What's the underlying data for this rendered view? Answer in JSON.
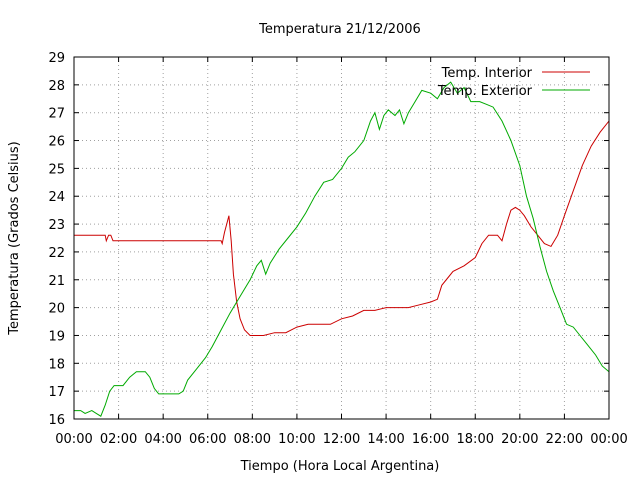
{
  "chart_data": {
    "type": "line",
    "title": "Temperatura 21/12/2006",
    "xlabel": "Tiempo (Hora Local Argentina)",
    "ylabel": "Temperatura (Grados Celsius)",
    "xlim": [
      0,
      24
    ],
    "ylim": [
      16,
      29
    ],
    "x_ticks": [
      "00:00",
      "02:00",
      "04:00",
      "06:00",
      "08:00",
      "10:00",
      "12:00",
      "14:00",
      "16:00",
      "18:00",
      "20:00",
      "22:00",
      "00:00"
    ],
    "y_ticks": [
      "16",
      "17",
      "18",
      "19",
      "20",
      "21",
      "22",
      "23",
      "24",
      "25",
      "26",
      "27",
      "28",
      "29"
    ],
    "grid": true,
    "legend_position": "top-right",
    "series": [
      {
        "name": "Temp. Interior",
        "color": "#cc0000",
        "points": [
          [
            0.0,
            22.6
          ],
          [
            1.4,
            22.6
          ],
          [
            1.45,
            22.4
          ],
          [
            1.55,
            22.6
          ],
          [
            1.65,
            22.6
          ],
          [
            1.75,
            22.4
          ],
          [
            3.0,
            22.4
          ],
          [
            5.5,
            22.4
          ],
          [
            6.6,
            22.4
          ],
          [
            6.65,
            22.3
          ],
          [
            6.75,
            22.7
          ],
          [
            6.85,
            23.0
          ],
          [
            6.95,
            23.3
          ],
          [
            7.05,
            22.4
          ],
          [
            7.15,
            21.2
          ],
          [
            7.3,
            20.2
          ],
          [
            7.45,
            19.6
          ],
          [
            7.65,
            19.2
          ],
          [
            7.9,
            19.0
          ],
          [
            8.5,
            19.0
          ],
          [
            9.0,
            19.1
          ],
          [
            9.5,
            19.1
          ],
          [
            10.0,
            19.3
          ],
          [
            10.5,
            19.4
          ],
          [
            11.5,
            19.4
          ],
          [
            12.0,
            19.6
          ],
          [
            12.5,
            19.7
          ],
          [
            13.0,
            19.9
          ],
          [
            13.5,
            19.9
          ],
          [
            14.0,
            20.0
          ],
          [
            15.0,
            20.0
          ],
          [
            15.5,
            20.1
          ],
          [
            16.0,
            20.2
          ],
          [
            16.3,
            20.3
          ],
          [
            16.5,
            20.8
          ],
          [
            16.8,
            21.1
          ],
          [
            17.0,
            21.3
          ],
          [
            17.5,
            21.5
          ],
          [
            18.0,
            21.8
          ],
          [
            18.3,
            22.3
          ],
          [
            18.6,
            22.6
          ],
          [
            19.0,
            22.6
          ],
          [
            19.2,
            22.4
          ],
          [
            19.4,
            23.0
          ],
          [
            19.6,
            23.5
          ],
          [
            19.8,
            23.6
          ],
          [
            20.0,
            23.5
          ],
          [
            20.2,
            23.3
          ],
          [
            20.5,
            22.9
          ],
          [
            20.8,
            22.6
          ],
          [
            21.1,
            22.3
          ],
          [
            21.4,
            22.2
          ],
          [
            21.7,
            22.6
          ],
          [
            22.0,
            23.3
          ],
          [
            22.4,
            24.2
          ],
          [
            22.8,
            25.1
          ],
          [
            23.2,
            25.8
          ],
          [
            23.6,
            26.3
          ],
          [
            24.0,
            26.7
          ]
        ]
      },
      {
        "name": "Temp. Exterior",
        "color": "#00aa00",
        "points": [
          [
            0.0,
            16.3
          ],
          [
            0.3,
            16.3
          ],
          [
            0.5,
            16.2
          ],
          [
            0.8,
            16.3
          ],
          [
            1.0,
            16.2
          ],
          [
            1.2,
            16.1
          ],
          [
            1.4,
            16.5
          ],
          [
            1.6,
            17.0
          ],
          [
            1.8,
            17.2
          ],
          [
            2.2,
            17.2
          ],
          [
            2.5,
            17.5
          ],
          [
            2.8,
            17.7
          ],
          [
            3.2,
            17.7
          ],
          [
            3.4,
            17.5
          ],
          [
            3.6,
            17.1
          ],
          [
            3.8,
            16.9
          ],
          [
            4.2,
            16.9
          ],
          [
            4.7,
            16.9
          ],
          [
            4.9,
            17.0
          ],
          [
            5.1,
            17.4
          ],
          [
            5.5,
            17.8
          ],
          [
            5.9,
            18.2
          ],
          [
            6.2,
            18.6
          ],
          [
            6.6,
            19.2
          ],
          [
            7.0,
            19.8
          ],
          [
            7.3,
            20.2
          ],
          [
            7.6,
            20.6
          ],
          [
            7.9,
            21.0
          ],
          [
            8.2,
            21.5
          ],
          [
            8.4,
            21.7
          ],
          [
            8.6,
            21.2
          ],
          [
            8.8,
            21.6
          ],
          [
            9.2,
            22.1
          ],
          [
            9.6,
            22.5
          ],
          [
            10.0,
            22.9
          ],
          [
            10.4,
            23.4
          ],
          [
            10.8,
            24.0
          ],
          [
            11.2,
            24.5
          ],
          [
            11.6,
            24.6
          ],
          [
            12.0,
            25.0
          ],
          [
            12.3,
            25.4
          ],
          [
            12.6,
            25.6
          ],
          [
            13.0,
            26.0
          ],
          [
            13.3,
            26.7
          ],
          [
            13.5,
            27.0
          ],
          [
            13.7,
            26.4
          ],
          [
            13.9,
            26.9
          ],
          [
            14.1,
            27.1
          ],
          [
            14.4,
            26.9
          ],
          [
            14.6,
            27.1
          ],
          [
            14.8,
            26.6
          ],
          [
            15.0,
            27.0
          ],
          [
            15.3,
            27.4
          ],
          [
            15.6,
            27.8
          ],
          [
            16.0,
            27.7
          ],
          [
            16.3,
            27.5
          ],
          [
            16.6,
            27.9
          ],
          [
            16.9,
            28.1
          ],
          [
            17.2,
            27.7
          ],
          [
            17.5,
            27.9
          ],
          [
            17.8,
            27.4
          ],
          [
            18.2,
            27.4
          ],
          [
            18.5,
            27.3
          ],
          [
            18.8,
            27.2
          ],
          [
            19.2,
            26.7
          ],
          [
            19.6,
            26.0
          ],
          [
            20.0,
            25.1
          ],
          [
            20.3,
            24.0
          ],
          [
            20.6,
            23.2
          ],
          [
            20.9,
            22.2
          ],
          [
            21.2,
            21.3
          ],
          [
            21.5,
            20.6
          ],
          [
            21.8,
            20.0
          ],
          [
            22.1,
            19.4
          ],
          [
            22.4,
            19.3
          ],
          [
            22.7,
            19.0
          ],
          [
            23.0,
            18.7
          ],
          [
            23.4,
            18.3
          ],
          [
            23.7,
            17.9
          ],
          [
            24.0,
            17.7
          ]
        ]
      }
    ]
  }
}
